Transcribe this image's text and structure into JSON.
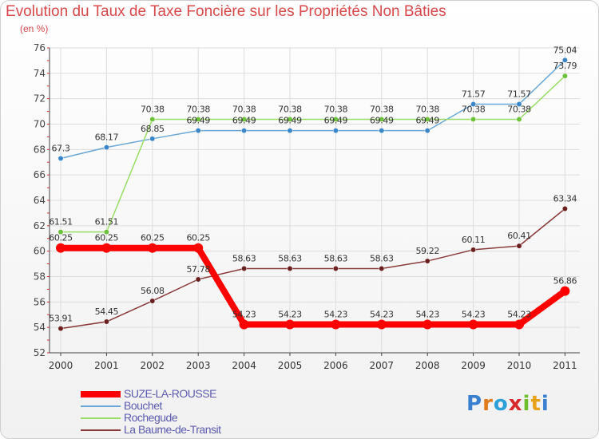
{
  "title": "Evolution du Taux de Taxe Foncière sur les Propriétés Non Bâties",
  "unit_label": "(en %)",
  "chart_data": {
    "type": "line",
    "title": "Evolution du Taux de Taxe Foncière sur les Propriétés Non Bâties",
    "ylabel": "(en %)",
    "xlabel": "",
    "x": [
      "2000",
      "2001",
      "2002",
      "2003",
      "2004",
      "2005",
      "2006",
      "2007",
      "2008",
      "2009",
      "2010",
      "2011"
    ],
    "ylim": [
      52,
      76
    ],
    "yticks": [
      52,
      54,
      56,
      58,
      60,
      62,
      64,
      66,
      68,
      70,
      72,
      74,
      76
    ],
    "series": [
      {
        "name": "SUZE-LA-ROUSSE",
        "color": "#ff0000",
        "bold": true,
        "values": [
          60.25,
          60.25,
          60.25,
          60.25,
          54.23,
          54.23,
          54.23,
          54.23,
          54.23,
          54.23,
          54.23,
          56.86
        ],
        "labels": [
          "60.25",
          "60.25",
          "60.25",
          "60.25",
          "54.23",
          "54.23",
          "54.23",
          "54.23",
          "54.23",
          "54.23",
          "54.23",
          "56.86"
        ]
      },
      {
        "name": "Bouchet",
        "color": "#6aa7d8",
        "point_color": "#3a86c8",
        "bold": false,
        "values": [
          67.3,
          68.17,
          68.85,
          69.49,
          69.49,
          69.49,
          69.49,
          69.49,
          69.49,
          71.57,
          71.57,
          75.04
        ],
        "labels": [
          "67.3",
          "68.17",
          "68.85",
          "69.49",
          "69.49",
          "69.49",
          "69.49",
          "69.49",
          "69.49",
          "71.57",
          "71.57",
          "75.04"
        ]
      },
      {
        "name": "Rochegude",
        "color": "#99dd66",
        "point_color": "#6cc23a",
        "bold": false,
        "values": [
          61.51,
          61.51,
          70.38,
          70.38,
          70.38,
          70.38,
          70.38,
          70.38,
          70.38,
          70.38,
          70.38,
          73.79
        ],
        "labels": [
          "61.51",
          "61.51",
          "70.38",
          "70.38",
          "70.38",
          "70.38",
          "70.38",
          "70.38",
          "70.38",
          "70.38",
          "70.38",
          "73.79"
        ]
      },
      {
        "name": "La Baume-de-Transit",
        "color": "#8a3a3a",
        "point_color": "#6b1f1f",
        "bold": false,
        "values": [
          53.91,
          54.45,
          56.08,
          57.78,
          58.63,
          58.63,
          58.63,
          58.63,
          59.22,
          60.11,
          60.41,
          63.34
        ],
        "labels": [
          "53.91",
          "54.45",
          "56.08",
          "57.78",
          "58.63",
          "58.63",
          "58.63",
          "58.63",
          "59.22",
          "60.11",
          "60.41",
          "63.34"
        ]
      }
    ]
  },
  "legend": [
    {
      "label": "SUZE-LA-ROUSSE",
      "color": "#ff0000"
    },
    {
      "label": "Bouchet",
      "color": "#6aa7d8"
    },
    {
      "label": "Rochegude",
      "color": "#99dd66"
    },
    {
      "label": "La Baume-de-Transit",
      "color": "#8a3a3a"
    }
  ],
  "logo": {
    "letters": [
      "P",
      "r",
      "o",
      "x",
      "i",
      "t",
      "i"
    ],
    "colors": [
      "#3a7fd0",
      "#e07a1a",
      "#2ea0d8",
      "#d82a2a",
      "#6cbf2a",
      "#e8a21a",
      "#3a7fd0"
    ]
  }
}
